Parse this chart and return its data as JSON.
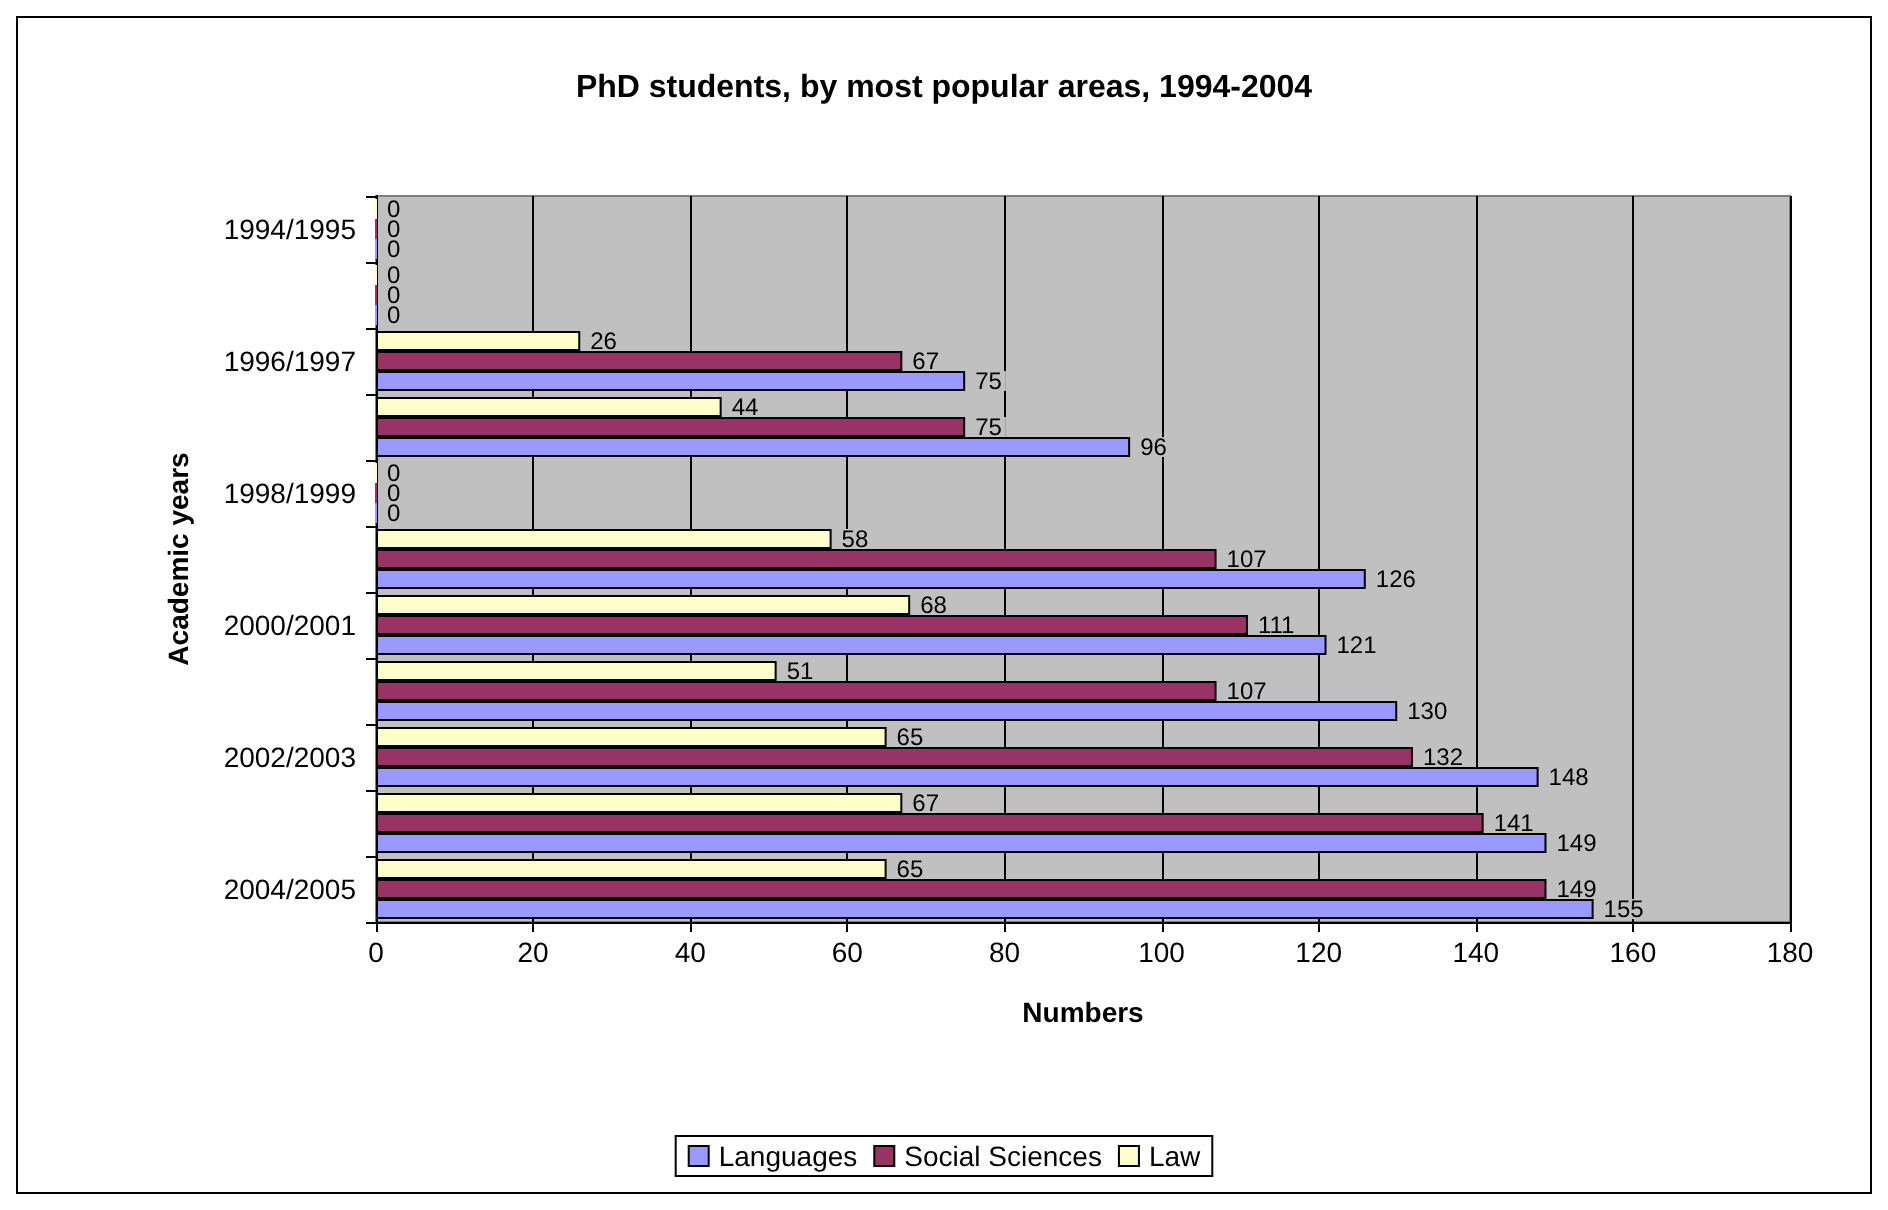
{
  "chart_data": {
    "type": "bar",
    "orientation": "horizontal",
    "title": "PhD students, by most popular areas, 1994-2004",
    "xlabel": "Numbers",
    "ylabel": "Academic years",
    "categories": [
      "1994/1995",
      null,
      "1996/1997",
      null,
      "1998/1999",
      null,
      "2000/2001",
      null,
      "2002/2003",
      null,
      "2004/2005"
    ],
    "series": [
      {
        "name": "Languages",
        "color": "#9999ff",
        "values": [
          0,
          0,
          75,
          96,
          0,
          126,
          121,
          130,
          148,
          149,
          155
        ]
      },
      {
        "name": "Social Sciences",
        "color": "#993366",
        "values": [
          0,
          0,
          67,
          75,
          0,
          107,
          111,
          107,
          132,
          141,
          149
        ]
      },
      {
        "name": "Law",
        "color": "#ffffcc",
        "values": [
          0,
          0,
          26,
          44,
          0,
          58,
          68,
          51,
          65,
          67,
          65
        ]
      }
    ],
    "xlim": [
      0,
      180
    ],
    "xticks": [
      0,
      20,
      40,
      60,
      80,
      100,
      120,
      140,
      160,
      180
    ],
    "grid": "x",
    "legend": "bottom",
    "data_labels": true
  }
}
